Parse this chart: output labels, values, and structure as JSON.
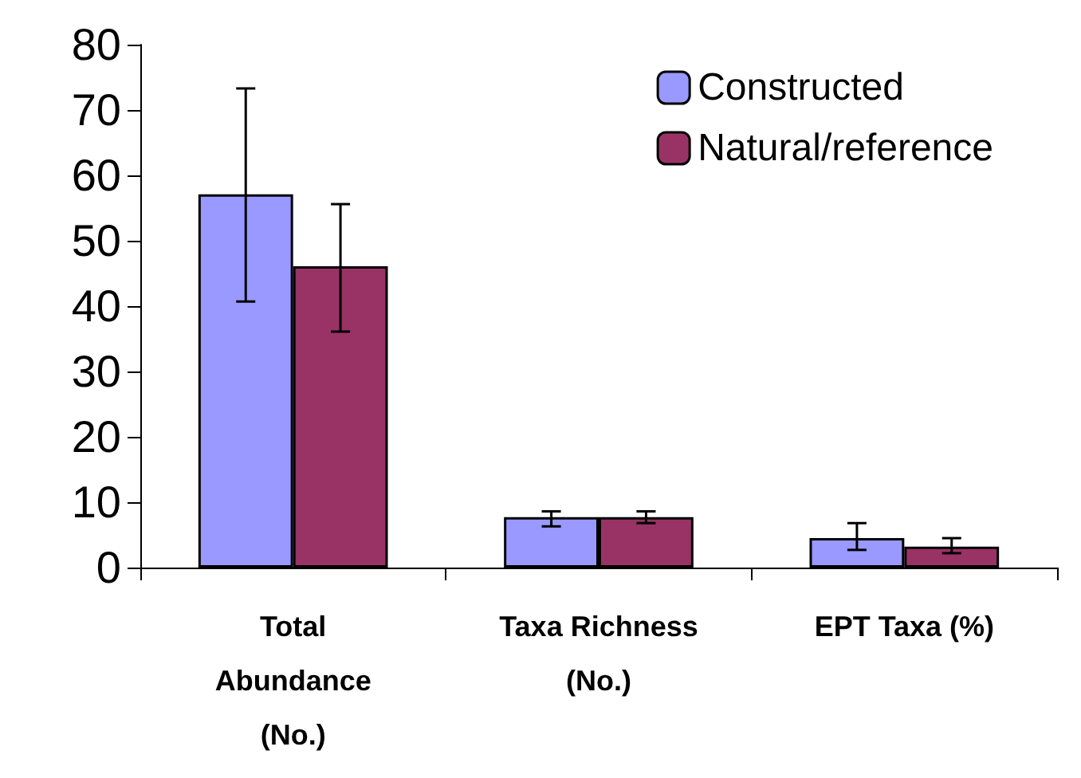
{
  "chart_data": {
    "type": "bar",
    "categories": [
      "Total\nAbundance\n(No.)",
      "Taxa Richness\n(No.)",
      "EPT Taxa (%)"
    ],
    "series": [
      {
        "name": "Constructed",
        "color": "#9999ff",
        "values": [
          57.1,
          7.7,
          4.5
        ],
        "errors": [
          [
            40.7,
            73.3
          ],
          [
            6.3,
            8.6
          ],
          [
            2.7,
            6.8
          ]
        ]
      },
      {
        "name": "Natural/reference",
        "color": "#993366",
        "values": [
          46.1,
          7.7,
          3.2
        ],
        "errors": [
          [
            36.1,
            55.6
          ],
          [
            6.8,
            8.6
          ],
          [
            2.2,
            4.5
          ]
        ]
      }
    ],
    "ylim": [
      0,
      80
    ],
    "yticks": [
      0,
      10,
      20,
      30,
      40,
      50,
      60,
      70,
      80
    ],
    "grid": false,
    "legend": "top right"
  }
}
